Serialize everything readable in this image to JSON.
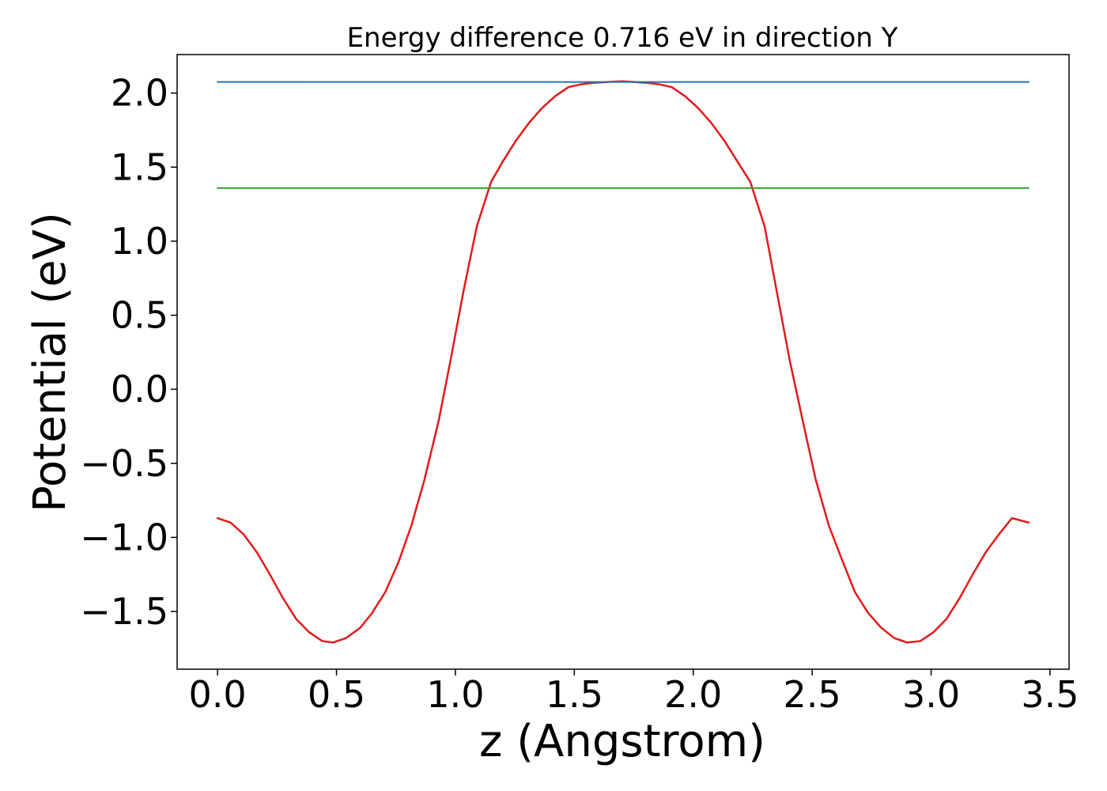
{
  "chart_data": {
    "type": "line",
    "title": "Energy difference 0.716 eV in direction Y",
    "xlabel": "z (Angstrom)",
    "ylabel": "Potential (eV)",
    "xlim": [
      -0.17,
      3.58
    ],
    "ylim": [
      -1.89,
      2.26
    ],
    "grid": false,
    "xticks": [
      0.0,
      0.5,
      1.0,
      1.5,
      2.0,
      2.5,
      3.0,
      3.5
    ],
    "xtick_labels": [
      "0.0",
      "0.5",
      "1.0",
      "1.5",
      "2.0",
      "2.5",
      "3.0",
      "3.5"
    ],
    "yticks": [
      -1.5,
      -1.0,
      -0.5,
      0.0,
      0.5,
      1.0,
      1.5,
      2.0
    ],
    "ytick_labels": [
      "−1.5",
      "−1.0",
      "−0.5",
      "0.0",
      "0.5",
      "1.0",
      "1.5",
      "2.0"
    ],
    "colors": {
      "potential": "#e31a1c",
      "max_level": "#1f77b4",
      "mid_level": "#2ca02c"
    },
    "series": [
      {
        "type": "line",
        "color": "#e31a1c",
        "x": [
          0.0,
          0.055,
          0.11,
          0.165,
          0.22,
          0.275,
          0.33,
          0.385,
          0.44,
          0.485,
          0.54,
          0.6,
          0.65,
          0.705,
          0.76,
          0.815,
          0.87,
          0.93,
          0.98,
          1.035,
          1.09,
          1.15,
          1.2,
          1.255,
          1.31,
          1.365,
          1.42,
          1.475,
          1.53,
          1.585,
          1.64,
          1.7,
          1.75,
          1.8,
          1.855,
          1.91,
          1.965,
          2.02,
          2.075,
          2.13,
          2.185,
          2.24,
          2.3,
          2.35,
          2.405,
          2.46,
          2.515,
          2.57,
          2.63,
          2.68,
          2.735,
          2.79,
          2.845,
          2.9,
          2.955,
          3.01,
          3.065,
          3.12,
          3.175,
          3.23,
          3.285,
          3.34,
          3.41
        ],
        "y": [
          -0.87,
          -0.9,
          -0.98,
          -1.1,
          -1.25,
          -1.41,
          -1.55,
          -1.64,
          -1.7,
          -1.71,
          -1.68,
          -1.61,
          -1.51,
          -1.37,
          -1.17,
          -0.92,
          -0.61,
          -0.21,
          0.2,
          0.67,
          1.1,
          1.4,
          1.54,
          1.68,
          1.8,
          1.9,
          1.98,
          2.04,
          2.06,
          2.07,
          2.075,
          2.08,
          2.075,
          2.07,
          2.06,
          2.04,
          1.98,
          1.9,
          1.8,
          1.68,
          1.54,
          1.4,
          1.1,
          0.67,
          0.2,
          -0.21,
          -0.61,
          -0.92,
          -1.17,
          -1.37,
          -1.51,
          -1.61,
          -1.68,
          -1.71,
          -1.7,
          -1.64,
          -1.55,
          -1.41,
          -1.25,
          -1.1,
          -0.98,
          -0.87,
          -0.9
        ]
      },
      {
        "type": "hline",
        "color": "#1f77b4",
        "x": [
          0.0,
          3.41
        ],
        "y": [
          2.075,
          2.075
        ]
      },
      {
        "type": "hline",
        "color": "#2ca02c",
        "x": [
          0.0,
          3.41
        ],
        "y": [
          1.359,
          1.359
        ]
      }
    ]
  }
}
